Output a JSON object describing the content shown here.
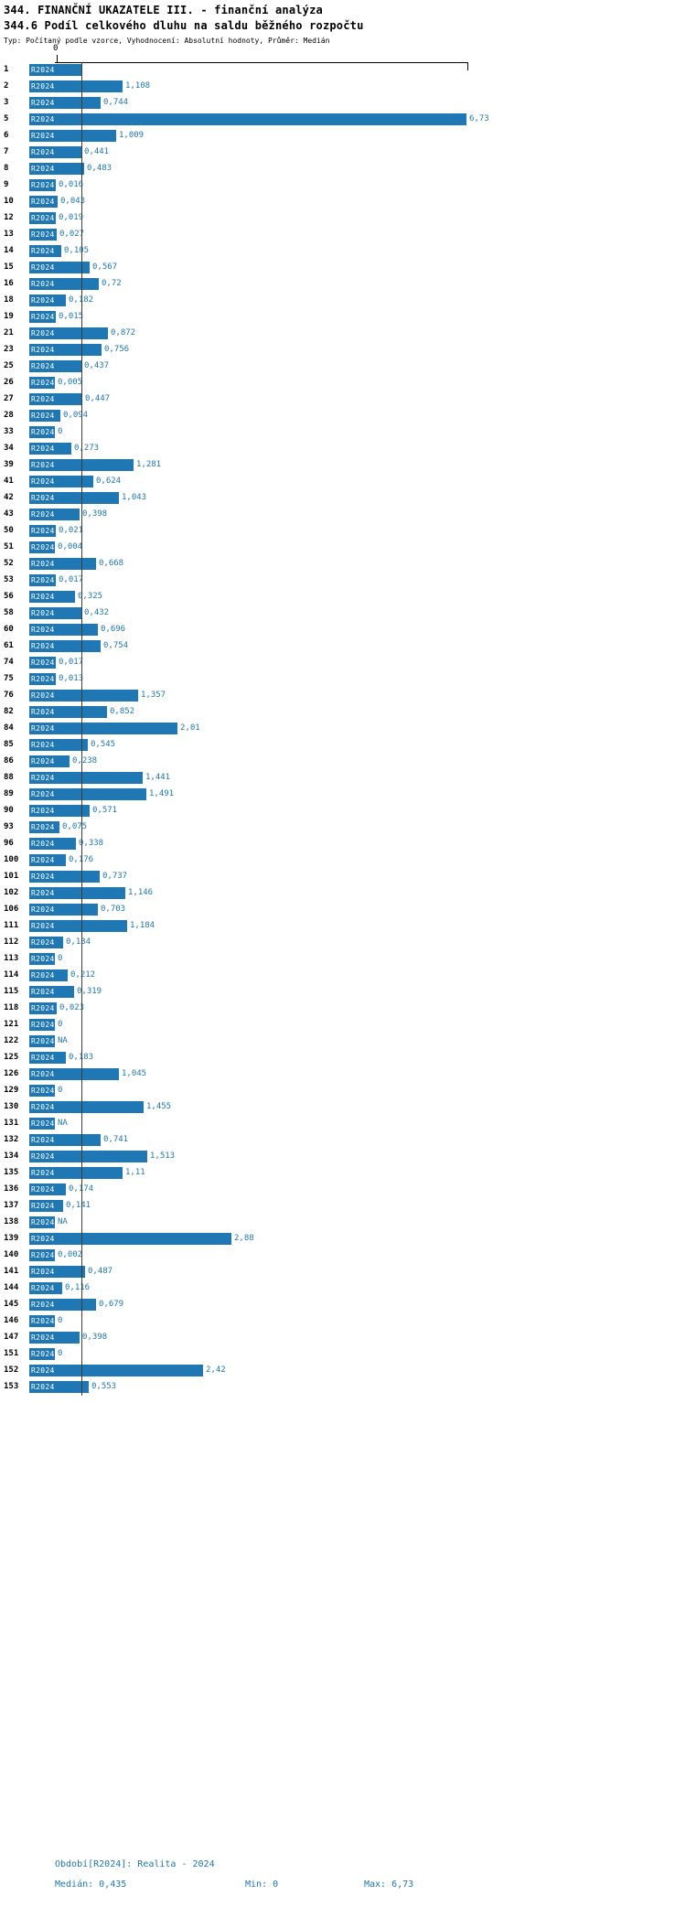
{
  "chart_data": {
    "type": "bar",
    "orientation": "horizontal",
    "title": "344. FINANČNÍ UKAZATELE III. - finanční analýza",
    "subtitle": "344.6 Podíl celkového dluhu na saldu běžného rozpočtu",
    "meta": "Typ: Počítaný podle vzorce, Vyhodnocení: Absolutní hodnoty, Průměr: Medián",
    "series_label": "R2024",
    "x_axis": {
      "tick_label": "0",
      "min": 0,
      "max": 6.73
    },
    "median_line_value": 0.435,
    "rows": [
      {
        "id": "1",
        "value": 0.43,
        "label": ""
      },
      {
        "id": "2",
        "value": 1.108,
        "label": "1,108"
      },
      {
        "id": "3",
        "value": 0.744,
        "label": "0,744"
      },
      {
        "id": "5",
        "value": 6.73,
        "label": "6,73"
      },
      {
        "id": "6",
        "value": 1.009,
        "label": "1,009"
      },
      {
        "id": "7",
        "value": 0.441,
        "label": "0,441"
      },
      {
        "id": "8",
        "value": 0.483,
        "label": "0,483"
      },
      {
        "id": "9",
        "value": 0.016,
        "label": "0,016"
      },
      {
        "id": "10",
        "value": 0.043,
        "label": "0,043"
      },
      {
        "id": "12",
        "value": 0.019,
        "label": "0,019"
      },
      {
        "id": "13",
        "value": 0.027,
        "label": "0,027"
      },
      {
        "id": "14",
        "value": 0.105,
        "label": "0,105"
      },
      {
        "id": "15",
        "value": 0.567,
        "label": "0,567"
      },
      {
        "id": "16",
        "value": 0.72,
        "label": "0,72"
      },
      {
        "id": "18",
        "value": 0.182,
        "label": "0,182"
      },
      {
        "id": "19",
        "value": 0.015,
        "label": "0,015"
      },
      {
        "id": "21",
        "value": 0.872,
        "label": "0,872"
      },
      {
        "id": "23",
        "value": 0.756,
        "label": "0,756"
      },
      {
        "id": "25",
        "value": 0.437,
        "label": "0,437"
      },
      {
        "id": "26",
        "value": 0.005,
        "label": "0,005"
      },
      {
        "id": "27",
        "value": 0.447,
        "label": "0,447"
      },
      {
        "id": "28",
        "value": 0.094,
        "label": "0,094"
      },
      {
        "id": "33",
        "value": 0,
        "label": "0"
      },
      {
        "id": "34",
        "value": 0.273,
        "label": "0,273"
      },
      {
        "id": "39",
        "value": 1.281,
        "label": "1,281"
      },
      {
        "id": "41",
        "value": 0.624,
        "label": "0,624"
      },
      {
        "id": "42",
        "value": 1.043,
        "label": "1,043"
      },
      {
        "id": "43",
        "value": 0.398,
        "label": "0,398"
      },
      {
        "id": "50",
        "value": 0.021,
        "label": "0,021"
      },
      {
        "id": "51",
        "value": 0.004,
        "label": "0,004"
      },
      {
        "id": "52",
        "value": 0.668,
        "label": "0,668"
      },
      {
        "id": "53",
        "value": 0.017,
        "label": "0,017"
      },
      {
        "id": "56",
        "value": 0.325,
        "label": "0,325"
      },
      {
        "id": "58",
        "value": 0.432,
        "label": "0,432"
      },
      {
        "id": "60",
        "value": 0.696,
        "label": "0,696"
      },
      {
        "id": "61",
        "value": 0.754,
        "label": "0,754"
      },
      {
        "id": "74",
        "value": 0.017,
        "label": "0,017"
      },
      {
        "id": "75",
        "value": 0.013,
        "label": "0,013"
      },
      {
        "id": "76",
        "value": 1.357,
        "label": "1,357"
      },
      {
        "id": "82",
        "value": 0.852,
        "label": "0,852"
      },
      {
        "id": "84",
        "value": 2.01,
        "label": "2,01"
      },
      {
        "id": "85",
        "value": 0.545,
        "label": "0,545"
      },
      {
        "id": "86",
        "value": 0.238,
        "label": "0,238"
      },
      {
        "id": "88",
        "value": 1.441,
        "label": "1,441"
      },
      {
        "id": "89",
        "value": 1.491,
        "label": "1,491"
      },
      {
        "id": "90",
        "value": 0.571,
        "label": "0,571"
      },
      {
        "id": "93",
        "value": 0.075,
        "label": "0,075"
      },
      {
        "id": "96",
        "value": 0.338,
        "label": "0,338"
      },
      {
        "id": "100",
        "value": 0.176,
        "label": "0,176"
      },
      {
        "id": "101",
        "value": 0.737,
        "label": "0,737"
      },
      {
        "id": "102",
        "value": 1.146,
        "label": "1,146"
      },
      {
        "id": "106",
        "value": 0.703,
        "label": "0,703"
      },
      {
        "id": "111",
        "value": 1.184,
        "label": "1,184"
      },
      {
        "id": "112",
        "value": 0.134,
        "label": "0,134"
      },
      {
        "id": "113",
        "value": 0,
        "label": "0"
      },
      {
        "id": "114",
        "value": 0.212,
        "label": "0,212"
      },
      {
        "id": "115",
        "value": 0.319,
        "label": "0,319"
      },
      {
        "id": "118",
        "value": 0.023,
        "label": "0,023"
      },
      {
        "id": "121",
        "value": 0,
        "label": "0"
      },
      {
        "id": "122",
        "value": null,
        "label": "NA"
      },
      {
        "id": "125",
        "value": 0.183,
        "label": "0,183"
      },
      {
        "id": "126",
        "value": 1.045,
        "label": "1,045"
      },
      {
        "id": "129",
        "value": 0,
        "label": "0"
      },
      {
        "id": "130",
        "value": 1.455,
        "label": "1,455"
      },
      {
        "id": "131",
        "value": null,
        "label": "NA"
      },
      {
        "id": "132",
        "value": 0.741,
        "label": "0,741"
      },
      {
        "id": "134",
        "value": 1.513,
        "label": "1,513"
      },
      {
        "id": "135",
        "value": 1.11,
        "label": "1,11"
      },
      {
        "id": "136",
        "value": 0.174,
        "label": "0,174"
      },
      {
        "id": "137",
        "value": 0.141,
        "label": "0,141"
      },
      {
        "id": "138",
        "value": null,
        "label": "NA"
      },
      {
        "id": "139",
        "value": 2.88,
        "label": "2,88"
      },
      {
        "id": "140",
        "value": 0.002,
        "label": "0,002"
      },
      {
        "id": "141",
        "value": 0.487,
        "label": "0,487"
      },
      {
        "id": "144",
        "value": 0.116,
        "label": "0,116"
      },
      {
        "id": "145",
        "value": 0.679,
        "label": "0,679"
      },
      {
        "id": "146",
        "value": 0,
        "label": "0"
      },
      {
        "id": "147",
        "value": 0.398,
        "label": "0,398"
      },
      {
        "id": "151",
        "value": 0,
        "label": "0"
      },
      {
        "id": "152",
        "value": 2.42,
        "label": "2,42"
      },
      {
        "id": "153",
        "value": 0.553,
        "label": "0,553"
      }
    ]
  },
  "footer": {
    "period": "Období[R2024]: Realita - 2024",
    "median": "Medián: 0,435",
    "min": "Min: 0",
    "max": "Max: 6,73"
  },
  "colors": {
    "bar": "#1f77b4",
    "series_text": "#ffffff",
    "value_text": "#1f77b4",
    "footer_text": "#1f77b4",
    "axis": "#000000",
    "median_line": "#3c3c3c"
  }
}
